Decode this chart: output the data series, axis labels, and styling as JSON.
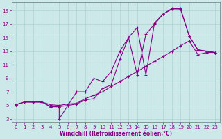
{
  "xlabel": "Windchill (Refroidissement éolien,°C)",
  "bg_color": "#cce8e8",
  "line_color": "#880088",
  "grid_color": "#aad4d4",
  "xlim": [
    -0.5,
    23.5
  ],
  "ylim": [
    2.5,
    20.2
  ],
  "xtick_vals": [
    0,
    1,
    2,
    3,
    4,
    5,
    6,
    7,
    8,
    9,
    10,
    11,
    12,
    13,
    14,
    15,
    16,
    17,
    18,
    19,
    20,
    21,
    22,
    23
  ],
  "ytick_vals": [
    3,
    5,
    7,
    9,
    11,
    13,
    15,
    17,
    19
  ],
  "lines": [
    {
      "x": [
        0,
        1,
        2,
        3,
        4,
        5,
        6,
        7,
        8,
        9,
        10,
        11,
        12,
        13,
        14,
        15,
        16,
        17,
        18,
        19,
        20,
        21,
        22,
        23
      ],
      "y": [
        5.1,
        5.5,
        5.5,
        5.5,
        5.1,
        5.0,
        5.2,
        5.3,
        6.0,
        6.5,
        7.0,
        7.8,
        8.5,
        9.3,
        10.0,
        10.8,
        11.5,
        12.2,
        13.0,
        13.8,
        14.5,
        12.5,
        12.8,
        12.8
      ]
    },
    {
      "x": [
        0,
        1,
        2,
        3,
        4,
        5,
        5,
        6,
        7,
        8,
        9,
        10,
        11,
        12,
        13,
        14,
        15,
        16,
        17,
        18,
        19,
        20,
        21,
        22,
        23
      ],
      "y": [
        5.1,
        5.5,
        5.5,
        5.5,
        4.8,
        4.8,
        3.0,
        5.0,
        5.2,
        5.8,
        6.0,
        7.5,
        8.0,
        11.8,
        15.0,
        9.5,
        15.5,
        17.0,
        18.5,
        19.3,
        19.2,
        15.2,
        13.2,
        13.0,
        12.8
      ]
    },
    {
      "x": [
        0,
        1,
        2,
        3,
        4,
        5,
        6,
        7,
        8,
        9,
        10,
        11,
        12,
        13,
        14,
        15,
        16,
        17,
        18,
        19,
        20,
        21,
        22,
        23
      ],
      "y": [
        5.1,
        5.5,
        5.5,
        5.5,
        4.8,
        4.8,
        5.0,
        7.0,
        7.0,
        9.0,
        8.5,
        10.0,
        13.0,
        15.0,
        16.5,
        9.5,
        17.2,
        18.5,
        19.2,
        19.3,
        15.2,
        13.2,
        13.0,
        12.8
      ]
    }
  ]
}
